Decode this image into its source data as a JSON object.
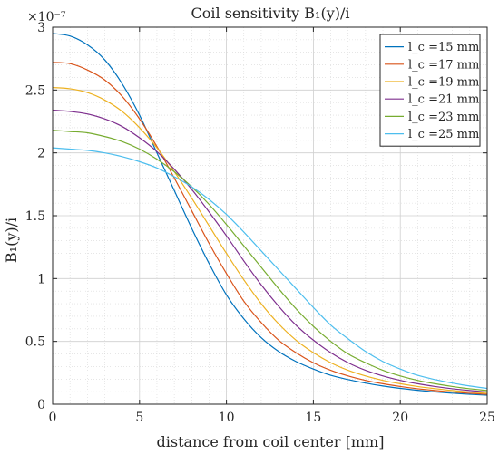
{
  "chart_data": {
    "type": "line",
    "title": "Coil sensitivity B₁(y)/i",
    "xlabel": "distance from coil center [mm]",
    "ylabel": "B₁(y)/i",
    "y_multiplier": "×10⁻⁷",
    "xlim": [
      0,
      25
    ],
    "ylim": [
      0,
      3
    ],
    "x_ticks": [
      "0",
      "5",
      "10",
      "15",
      "20",
      "25"
    ],
    "y_ticks": [
      "0",
      "0.5",
      "1",
      "1.5",
      "2",
      "2.5",
      "3"
    ],
    "grid": true,
    "minor_grid": true,
    "legend_position": "top-right",
    "x": [
      0,
      1,
      2,
      3,
      4,
      5,
      6,
      7,
      8,
      9,
      10,
      11,
      12,
      13,
      14,
      15,
      16,
      17,
      18,
      19,
      20,
      21,
      22,
      23,
      24,
      25
    ],
    "series": [
      {
        "name": "l_c =15 mm",
        "color": "#0072BD",
        "values": [
          2.95,
          2.93,
          2.86,
          2.74,
          2.55,
          2.3,
          2.0,
          1.7,
          1.4,
          1.12,
          0.87,
          0.68,
          0.53,
          0.42,
          0.34,
          0.28,
          0.23,
          0.196,
          0.168,
          0.145,
          0.126,
          0.111,
          0.098,
          0.088,
          0.079,
          0.072
        ]
      },
      {
        "name": "l_c =17 mm",
        "color": "#D95319",
        "values": [
          2.72,
          2.71,
          2.66,
          2.58,
          2.45,
          2.27,
          2.05,
          1.8,
          1.54,
          1.28,
          1.04,
          0.82,
          0.65,
          0.51,
          0.41,
          0.33,
          0.27,
          0.225,
          0.19,
          0.163,
          0.141,
          0.123,
          0.109,
          0.097,
          0.087,
          0.079
        ]
      },
      {
        "name": "l_c =19 mm",
        "color": "#EDB120",
        "values": [
          2.52,
          2.51,
          2.48,
          2.42,
          2.33,
          2.2,
          2.04,
          1.85,
          1.64,
          1.42,
          1.2,
          0.99,
          0.8,
          0.64,
          0.51,
          0.41,
          0.33,
          0.27,
          0.225,
          0.19,
          0.163,
          0.141,
          0.124,
          0.109,
          0.097,
          0.087
        ]
      },
      {
        "name": "l_c =21 mm",
        "color": "#7E2F8E",
        "values": [
          2.34,
          2.33,
          2.31,
          2.27,
          2.21,
          2.12,
          2.01,
          1.87,
          1.71,
          1.53,
          1.34,
          1.14,
          0.95,
          0.78,
          0.63,
          0.51,
          0.41,
          0.33,
          0.27,
          0.225,
          0.19,
          0.163,
          0.141,
          0.123,
          0.109,
          0.097
        ]
      },
      {
        "name": "l_c =23 mm",
        "color": "#77AC30",
        "values": [
          2.18,
          2.17,
          2.16,
          2.13,
          2.09,
          2.03,
          1.95,
          1.85,
          1.73,
          1.59,
          1.43,
          1.26,
          1.09,
          0.92,
          0.76,
          0.62,
          0.5,
          0.4,
          0.33,
          0.27,
          0.225,
          0.19,
          0.163,
          0.141,
          0.123,
          0.109
        ]
      },
      {
        "name": "l_c =25 mm",
        "color": "#4DBEEE",
        "values": [
          2.04,
          2.03,
          2.02,
          2.0,
          1.97,
          1.93,
          1.88,
          1.81,
          1.73,
          1.63,
          1.51,
          1.37,
          1.22,
          1.07,
          0.92,
          0.77,
          0.63,
          0.52,
          0.42,
          0.34,
          0.28,
          0.23,
          0.196,
          0.168,
          0.145,
          0.126
        ]
      }
    ]
  }
}
